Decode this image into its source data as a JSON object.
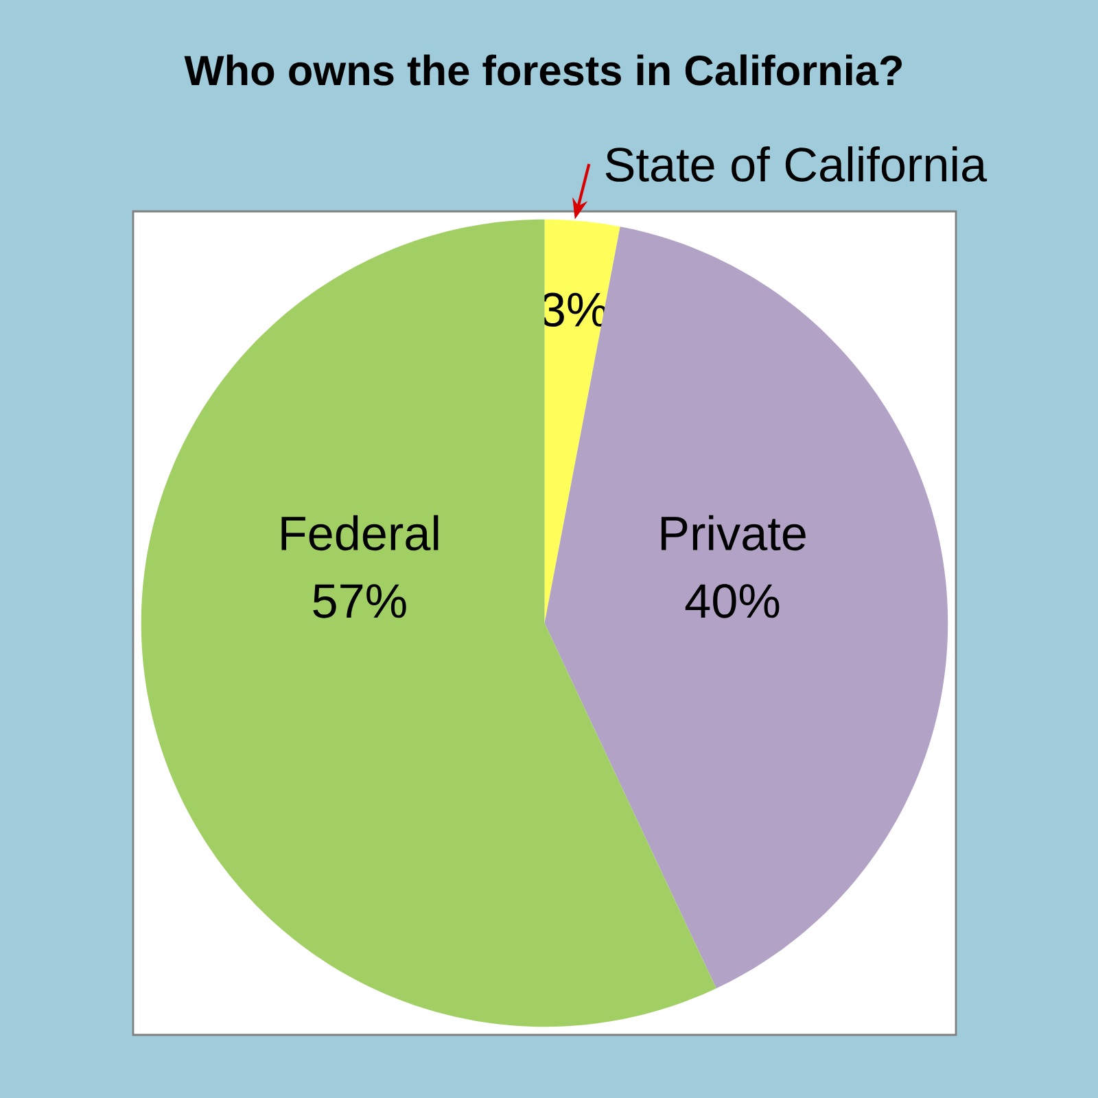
{
  "chart_data": {
    "type": "pie",
    "title": "Who owns the forests in California?",
    "categories": [
      "State of California",
      "Private",
      "Federal"
    ],
    "values": [
      3,
      40,
      57
    ],
    "colors": [
      "#ffff5b",
      "#b2a3c6",
      "#a1cf64"
    ],
    "value_labels": [
      "3%",
      "40%",
      "57%"
    ]
  }
}
